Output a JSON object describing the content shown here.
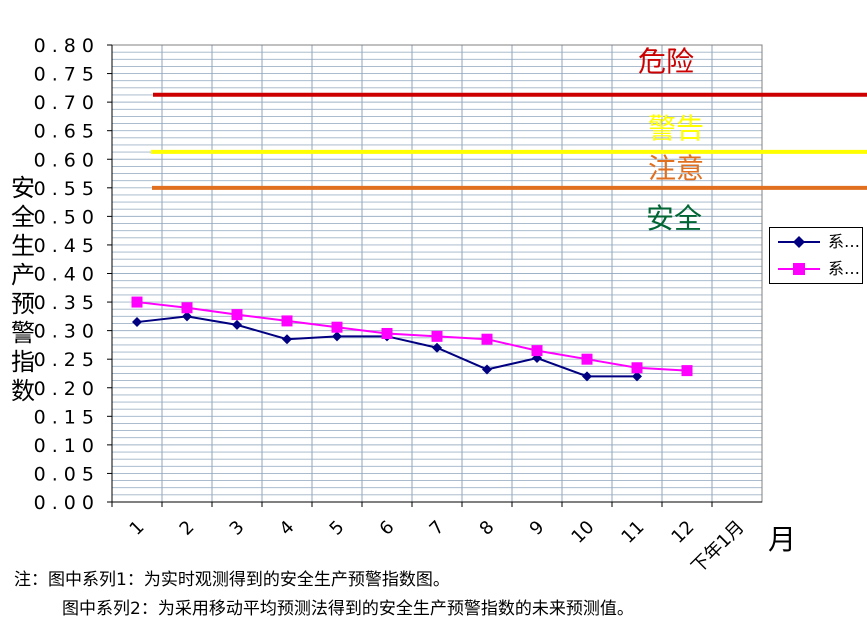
{
  "chart_data": {
    "type": "line",
    "ylabel": "安全生产预警指数",
    "xlabel": "月",
    "categories": [
      "1",
      "2",
      "3",
      "4",
      "5",
      "6",
      "7",
      "8",
      "9",
      "10",
      "11",
      "12",
      "下年1月"
    ],
    "ylim": [
      0,
      0.8
    ],
    "yticks": [
      "0.00",
      "0.05",
      "0.10",
      "0.15",
      "0.20",
      "0.25",
      "0.30",
      "0.35",
      "0.40",
      "0.45",
      "0.50",
      "0.55",
      "0.60",
      "0.65",
      "0.70",
      "0.75",
      "0.80"
    ],
    "grid": true,
    "series": [
      {
        "name": "系…",
        "color": "#000080",
        "marker": "diamond",
        "values": [
          0.315,
          0.325,
          0.31,
          0.285,
          0.29,
          0.29,
          0.27,
          0.232,
          0.252,
          0.22,
          0.22,
          null,
          null
        ]
      },
      {
        "name": "系…",
        "color": "#ff00ff",
        "marker": "square",
        "values": [
          0.35,
          0.34,
          0.328,
          0.317,
          0.306,
          0.295,
          0.29,
          0.285,
          0.265,
          0.25,
          0.235,
          0.23,
          null
        ]
      }
    ],
    "thresholds": [
      {
        "label": "危险",
        "value": 0.713,
        "color": "#cc0000"
      },
      {
        "label": "警告",
        "value": 0.613,
        "color": "#ffff00"
      },
      {
        "label": "注意",
        "value": 0.55,
        "color": "#e07020"
      },
      {
        "label": "安全",
        "value": null,
        "color": "#006633"
      }
    ],
    "legend_position": "right"
  },
  "notes": {
    "line1": "注：图中系列1：为实时观测得到的安全生产预警指数图。",
    "line2": "图中系列2：为采用移动平均预测法得到的安全生产预警指数的未来预测值。"
  }
}
